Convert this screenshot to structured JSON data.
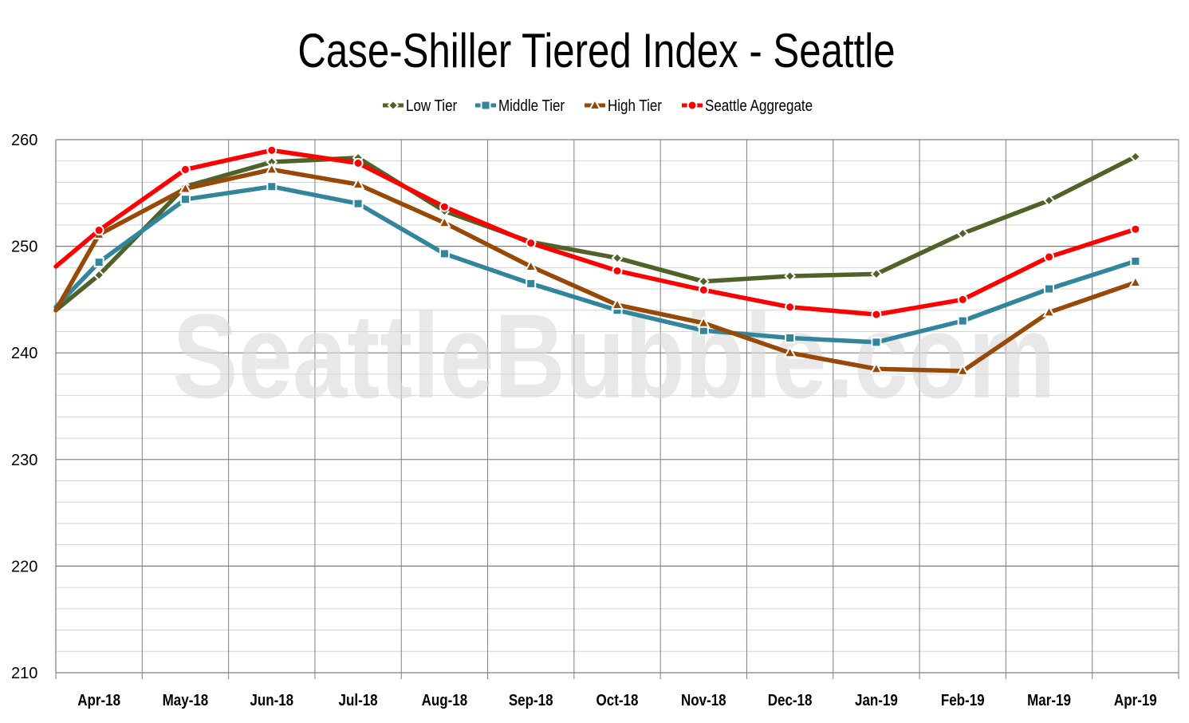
{
  "chart_data": {
    "type": "line",
    "title": "Case-Shiller Tiered Index - Seattle",
    "watermark": "SeattleBubble.com",
    "categories": [
      "Apr-18",
      "May-18",
      "Jun-18",
      "Jul-18",
      "Aug-18",
      "Sep-18",
      "Oct-18",
      "Nov-18",
      "Dec-18",
      "Jan-19",
      "Feb-19",
      "Mar-19",
      "Apr-19"
    ],
    "start_values": {
      "Low Tier": 244.0,
      "Middle Tier": 244.3,
      "High Tier": 244.0,
      "Seattle Aggregate": 248.1
    },
    "series": [
      {
        "name": "Low Tier",
        "color": "#4f6228",
        "marker": "diamond",
        "values": [
          247.3,
          255.6,
          257.9,
          258.3,
          253.3,
          250.4,
          248.9,
          246.7,
          247.2,
          247.4,
          251.2,
          254.3,
          258.4
        ]
      },
      {
        "name": "Middle Tier",
        "color": "#31859c",
        "marker": "square",
        "values": [
          248.5,
          254.4,
          255.6,
          254.0,
          249.3,
          246.5,
          244.0,
          242.1,
          241.4,
          241.0,
          243.0,
          246.0,
          248.6
        ]
      },
      {
        "name": "High Tier",
        "color": "#984807",
        "marker": "triangle",
        "values": [
          251.1,
          255.4,
          257.2,
          255.8,
          252.2,
          248.1,
          244.5,
          242.8,
          240.0,
          238.5,
          238.3,
          243.8,
          246.6
        ]
      },
      {
        "name": "Seattle Aggregate",
        "color": "#ff0000",
        "marker": "circle",
        "values": [
          251.5,
          257.2,
          259.0,
          257.8,
          253.7,
          250.3,
          247.7,
          245.9,
          244.3,
          243.6,
          245.0,
          249.0,
          251.6
        ]
      }
    ],
    "y_ticks": [
      210,
      220,
      230,
      240,
      250,
      260
    ],
    "ylim": [
      210,
      260
    ],
    "xlabel": "",
    "ylabel": "",
    "grid": true,
    "legend_position": "top-center"
  }
}
